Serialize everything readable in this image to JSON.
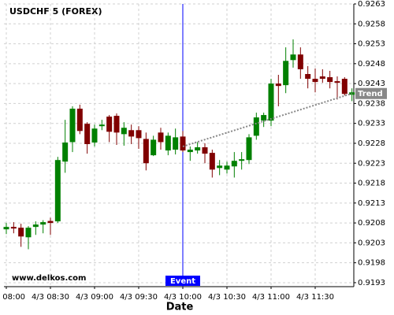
{
  "chart_data": {
    "type": "candlestick",
    "title": "USDCHF 5 (FOREX)",
    "watermark": "www.delkos.com",
    "x_label": "Date",
    "x": [
      "4/3 08:00",
      "4/3 08:05",
      "4/3 08:10",
      "4/3 08:15",
      "4/3 08:20",
      "4/3 08:25",
      "4/3 08:30",
      "4/3 08:35",
      "4/3 08:40",
      "4/3 08:45",
      "4/3 08:50",
      "4/3 08:55",
      "4/3 09:00",
      "4/3 09:05",
      "4/3 09:10",
      "4/3 09:15",
      "4/3 09:20",
      "4/3 09:25",
      "4/3 09:30",
      "4/3 09:35",
      "4/3 09:40",
      "4/3 09:45",
      "4/3 09:50",
      "4/3 09:55",
      "4/3 10:00",
      "4/3 10:05",
      "4/3 10:10",
      "4/3 10:15",
      "4/3 10:20",
      "4/3 10:25",
      "4/3 10:30",
      "4/3 10:35",
      "4/3 10:40",
      "4/3 10:45",
      "4/3 10:50",
      "4/3 10:55",
      "4/3 11:00",
      "4/3 11:05",
      "4/3 11:10",
      "4/3 11:15",
      "4/3 11:20",
      "4/3 11:25",
      "4/3 11:30",
      "4/3 11:35",
      "4/3 11:40",
      "4/3 11:45",
      "4/3 11:50",
      "4/3 11:55"
    ],
    "open": [
      0.92064,
      0.9207,
      0.92068,
      0.92044,
      0.9207,
      0.92076,
      0.92085,
      0.92084,
      0.92234,
      0.92283,
      0.92367,
      0.92329,
      0.92282,
      0.92323,
      0.92347,
      0.92349,
      0.92303,
      0.92313,
      0.92313,
      0.92291,
      0.9225,
      0.92307,
      0.92262,
      0.92264,
      0.92297,
      0.92258,
      0.92262,
      0.9227,
      0.92256,
      0.92218,
      0.92214,
      0.92222,
      0.92236,
      0.92238,
      0.92299,
      0.92337,
      0.92337,
      0.9243,
      0.92426,
      0.92489,
      0.92503,
      0.92454,
      0.92442,
      0.92448,
      0.92446,
      0.92436,
      0.92442,
      0.92402
    ],
    "high": [
      0.9208,
      0.92082,
      0.92078,
      0.92072,
      0.92084,
      0.92087,
      0.92093,
      0.92246,
      0.92339,
      0.92373,
      0.92377,
      0.92333,
      0.92327,
      0.92339,
      0.92351,
      0.92355,
      0.92333,
      0.92327,
      0.92323,
      0.92307,
      0.92299,
      0.92319,
      0.92307,
      0.92317,
      0.92311,
      0.92272,
      0.92283,
      0.9228,
      0.92264,
      0.92238,
      0.92234,
      0.92258,
      0.92258,
      0.92303,
      0.92357,
      0.92357,
      0.92442,
      0.92452,
      0.92521,
      0.92541,
      0.92521,
      0.92474,
      0.92468,
      0.92466,
      0.92462,
      0.92448,
      0.92446,
      0.92418
    ],
    "low": [
      0.92052,
      0.92054,
      0.9202,
      0.92014,
      0.9205,
      0.92054,
      0.9205,
      0.9208,
      0.92206,
      0.92258,
      0.92303,
      0.92254,
      0.92272,
      0.92313,
      0.92283,
      0.92276,
      0.92274,
      0.92278,
      0.92266,
      0.92212,
      0.92248,
      0.92264,
      0.9225,
      0.92252,
      0.92258,
      0.92236,
      0.92254,
      0.9223,
      0.92194,
      0.922,
      0.92204,
      0.92194,
      0.92214,
      0.92228,
      0.92289,
      0.92321,
      0.92323,
      0.92373,
      0.92406,
      0.9247,
      0.92442,
      0.92418,
      0.92408,
      0.92432,
      0.92418,
      0.9239,
      0.924,
      0.92386
    ],
    "close": [
      0.9207,
      0.92066,
      0.92046,
      0.92068,
      0.92076,
      0.92082,
      0.9208,
      0.92238,
      0.92282,
      0.92367,
      0.92311,
      0.92278,
      0.92317,
      0.92327,
      0.92309,
      0.92307,
      0.92319,
      0.92297,
      0.92293,
      0.9223,
      0.92289,
      0.92283,
      0.92299,
      0.92295,
      0.92262,
      0.92264,
      0.9227,
      0.92254,
      0.92214,
      0.92224,
      0.92224,
      0.92236,
      0.9224,
      0.92295,
      0.92345,
      0.92351,
      0.9243,
      0.92424,
      0.92487,
      0.92503,
      0.92466,
      0.92442,
      0.92434,
      0.92442,
      0.92434,
      0.92432,
      0.92404,
      0.92408
    ],
    "up_color": "#008000",
    "down_color": "#800000",
    "ylim": [
      0.9192,
      0.9263
    ],
    "yticks": [
      0.9193,
      0.9198,
      0.9203,
      0.9208,
      0.9213,
      0.9218,
      0.9223,
      0.9228,
      0.9233,
      0.9238,
      0.9243,
      0.9248,
      0.9253,
      0.9258,
      0.9263
    ],
    "xticks": [
      "4/3 08:00",
      "4/3 08:30",
      "4/3 09:00",
      "4/3 09:30",
      "4/3 10:00",
      "4/3 10:30",
      "4/3 11:00",
      "4/3 11:30"
    ],
    "grid": true,
    "event": {
      "label": "Event",
      "x": "4/3 10:00",
      "color": "#0000ff"
    },
    "trend": {
      "label": "Trend",
      "start_x": "4/3 10:00",
      "start_y": 0.92272,
      "end_x": "4/3 11:55",
      "end_y": 0.92405,
      "color": "#888888"
    }
  }
}
